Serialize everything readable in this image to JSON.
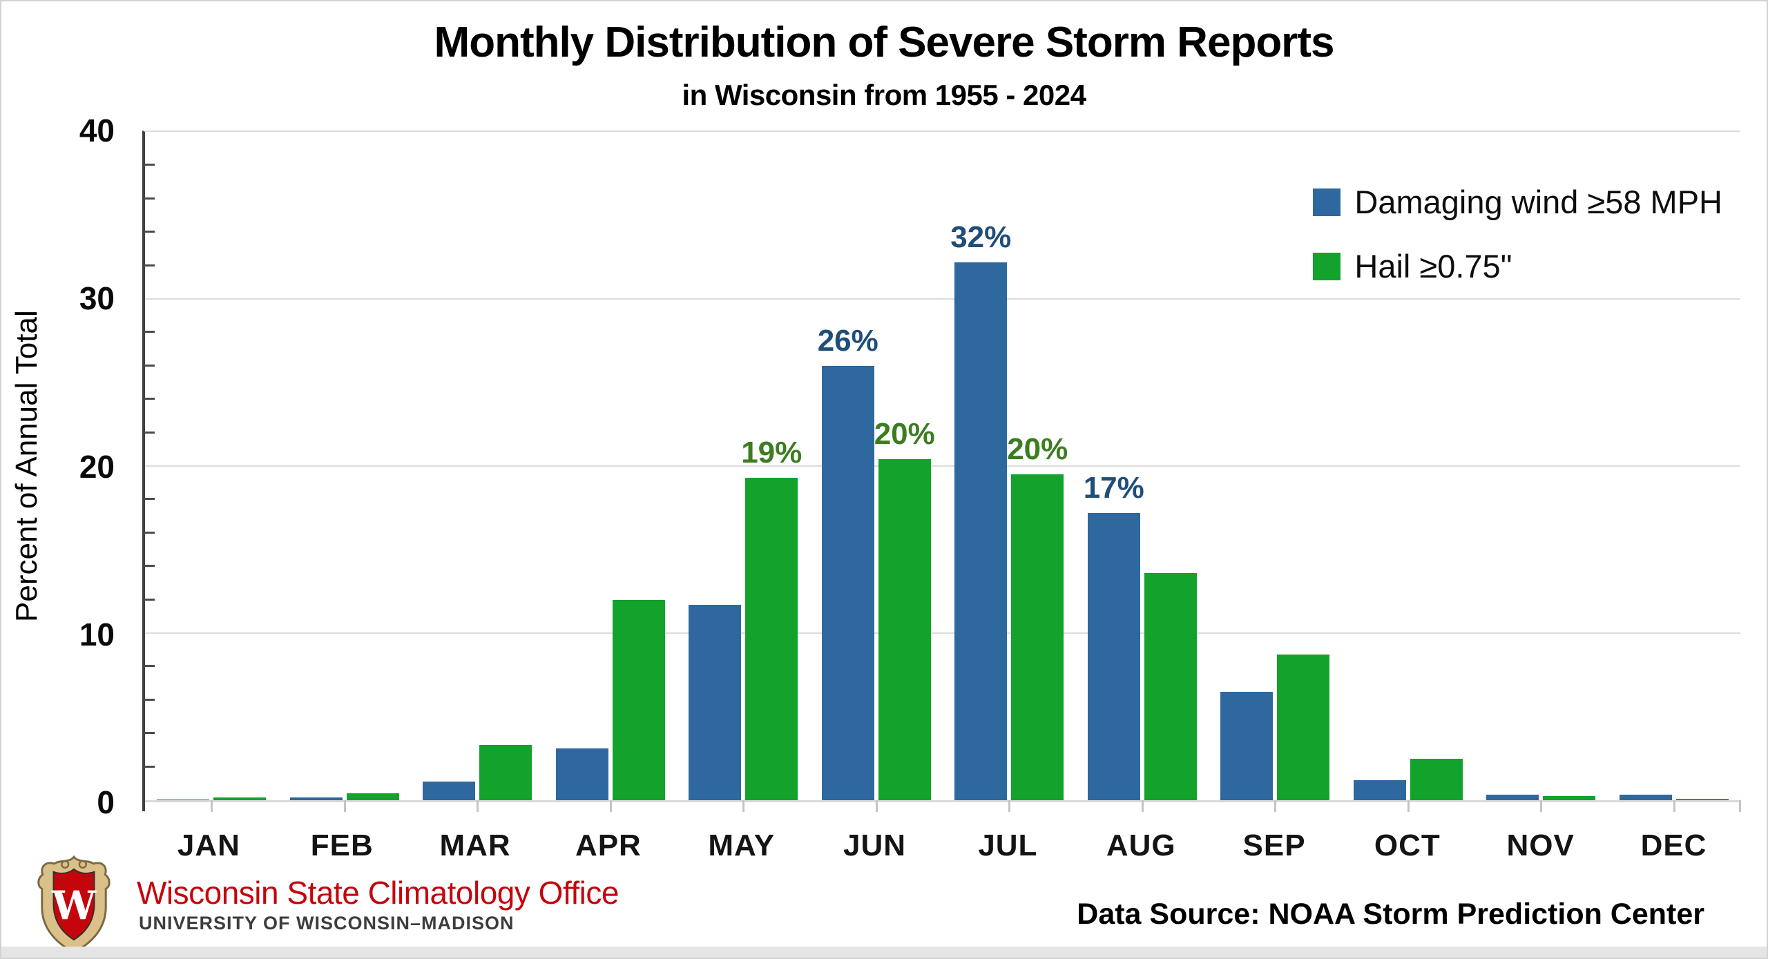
{
  "chart_data": {
    "type": "bar",
    "title": "Monthly Distribution of Severe Storm Reports",
    "subtitle": "in Wisconsin from 1955 - 2024",
    "ylabel": "Percent of Annual Total",
    "xlabel": "",
    "ylim": [
      0,
      40
    ],
    "yticks": [
      0,
      10,
      20,
      30,
      40
    ],
    "y_minor_tick_step": 2,
    "grid": true,
    "legend_position": "top-right",
    "categories": [
      "JAN",
      "FEB",
      "MAR",
      "APR",
      "MAY",
      "JUN",
      "JUL",
      "AUG",
      "SEP",
      "OCT",
      "NOV",
      "DEC"
    ],
    "series": [
      {
        "name": "Damaging wind ≥58 MPH",
        "color": "#2e689e",
        "label_color": "#1f4e79",
        "values": [
          0.05,
          0.15,
          1.1,
          3.1,
          11.7,
          26.0,
          32.2,
          17.2,
          6.5,
          1.2,
          0.35,
          0.35
        ],
        "labels": [
          "",
          "",
          "",
          "",
          "",
          "26%",
          "32%",
          "17%",
          "",
          "",
          "",
          ""
        ]
      },
      {
        "name": "Hail ≥0.75\"",
        "color": "#13a22c",
        "label_color": "#3c7d22",
        "values": [
          0.15,
          0.4,
          3.3,
          12.0,
          19.3,
          20.4,
          19.5,
          13.6,
          8.7,
          2.5,
          0.25,
          0.1
        ],
        "labels": [
          "",
          "",
          "",
          "",
          "19%",
          "20%",
          "20%",
          "",
          "",
          "",
          "",
          ""
        ]
      }
    ]
  },
  "footer": {
    "org": "Wisconsin State Climatology Office",
    "org_sub": "UNIVERSITY OF WISCONSIN–MADISON",
    "org_color": "#c5050c",
    "crest": {
      "letter": "W",
      "shield_red": "#c5050c",
      "border_tan": "#dcc08a"
    },
    "source": "Data Source: NOAA Storm Prediction Center"
  }
}
